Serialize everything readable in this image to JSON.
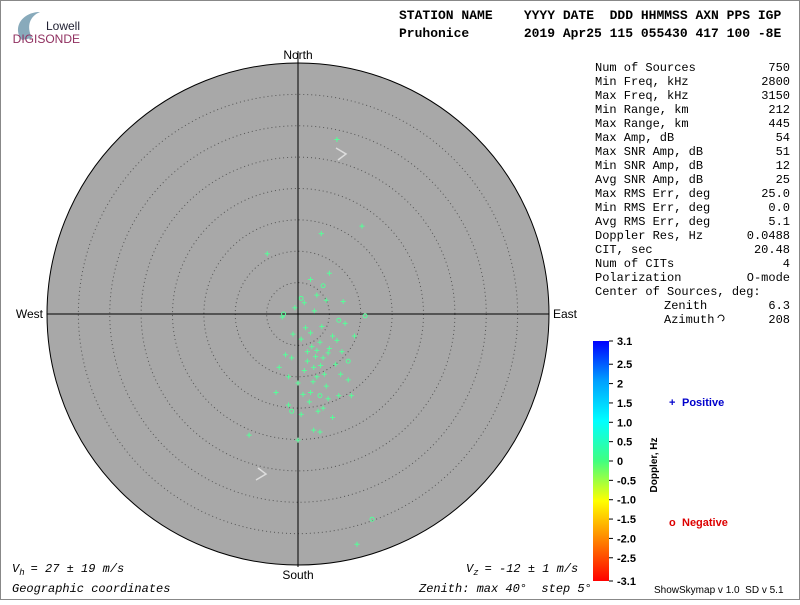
{
  "logo": {
    "top": "Lowell",
    "bottom": "DIGISONDE"
  },
  "header": {
    "labels": "STATION NAME    YYYY DATE  DDD HHMMSS AXN PPS IGP",
    "values": "Pruhonice       2019 Apr25 115 055430 417 100 -8E"
  },
  "stats": {
    "rows": [
      [
        "Num of Sources",
        "750"
      ],
      [
        "Min Freq, kHz",
        "2800"
      ],
      [
        "Max Freq, kHz",
        "3150"
      ],
      [
        "Min Range, km",
        "212"
      ],
      [
        "Max Range, km",
        "445"
      ],
      [
        "Max Amp, dB",
        "54"
      ],
      [
        "Max SNR Amp, dB",
        "51"
      ],
      [
        "Min SNR Amp, dB",
        "12"
      ],
      [
        "Avg SNR Amp, dB",
        "25"
      ],
      [
        "Max RMS Err, deg",
        "25.0"
      ],
      [
        "Min RMS Err, deg",
        "0.0"
      ],
      [
        "Avg RMS Err, deg",
        "5.1"
      ],
      [
        "Doppler Res, Hz",
        "0.0488"
      ],
      [
        "CIT, sec",
        "20.48"
      ],
      [
        "Num of CITs",
        "4"
      ],
      [
        "Polarization",
        "O-mode"
      ]
    ],
    "center_title": "Center of Sources, deg:",
    "center_rows": [
      [
        "Zenith",
        "6.3"
      ],
      [
        "Azimuth",
        "208"
      ]
    ]
  },
  "chart_data": {
    "type": "scatter",
    "directions": {
      "north": "North",
      "south": "South",
      "east": "East",
      "west": "West"
    },
    "xlim": [
      -40,
      40
    ],
    "ylim": [
      -40,
      40
    ],
    "ring_step": 5,
    "plot_color": "#a8a8a8",
    "marker_color": "#55ff99",
    "series": [
      {
        "name": "Positive",
        "marker": "+",
        "color": "#0000cc",
        "x": [
          2.0,
          3.5,
          1.5,
          4.0,
          2.5,
          5.0,
          3.0,
          1.0,
          4.5,
          2.0,
          3.8,
          0.5,
          6.0,
          5.5,
          1.8,
          3.2,
          4.8,
          0.0,
          -1.0,
          -2.0,
          7.0,
          8.0,
          6.5,
          -1.5,
          2.8,
          3.6,
          2.2,
          4.2,
          1.2,
          2.6,
          1.0,
          3.0,
          4.5,
          2.0,
          5.0,
          -0.5,
          -2.5,
          7.5,
          9.0,
          -3.0,
          0.5,
          5.5,
          2.5,
          -1.5,
          -3.5,
          8.5,
          -4.9,
          3.7,
          10.2,
          9.4,
          -7.8,
          0.0,
          3.5,
          4.0,
          6.2,
          1.5,
          3.0,
          4.8,
          2.4,
          0.8,
          6.8,
          -0.8,
          7.2,
          6.2
        ],
        "values": [
          -3.0,
          -4.5,
          -6.0,
          -7.0,
          -8.5,
          -5.5,
          -10.0,
          -9.0,
          -11.5,
          -12.5,
          -2.0,
          -4.0,
          -8.0,
          -3.5,
          -14.0,
          -15.5,
          -13.5,
          -11.0,
          -7.0,
          -6.5,
          -6.0,
          -10.5,
          -13.0,
          -10.0,
          -6.8,
          -8.2,
          -5.2,
          -9.6,
          -2.2,
          0.5,
          1.8,
          3.0,
          2.2,
          5.5,
          6.5,
          1.0,
          -0.5,
          -1.5,
          -3.5,
          -8.5,
          -16.0,
          -16.5,
          -18.5,
          -14.5,
          -12.5,
          -13.0,
          9.6,
          12.8,
          14.0,
          -36.7,
          -19.3,
          -20.1,
          -18.8,
          -15.0,
          -4.2,
          -7.5,
          -5.8,
          -6.2,
          -10.8,
          -12.8,
          -9.6,
          -3.2,
          2.0,
          27.8
        ]
      },
      {
        "name": "Negative",
        "marker": "o",
        "color": "#dd0000",
        "x": [
          11.8,
          10.7,
          4.0,
          6.5,
          -2.3,
          0.5,
          3.5,
          8.0,
          -1.0
        ],
        "values": [
          -32.7,
          -0.3,
          4.5,
          -1.0,
          0.0,
          2.5,
          -13.0,
          -7.5,
          -15.5
        ]
      }
    ],
    "colorbar": {
      "title": "Doppler, Hz",
      "lim": [
        -3.1,
        3.1
      ],
      "colormap": [
        "#ff0000",
        "#ff8000",
        "#ffff00",
        "#40ff80",
        "#00ffff",
        "#00a0ff",
        "#0000ff"
      ],
      "ticks": [
        3.1,
        2.5,
        2,
        1.5,
        {
          "value": 1,
          "label": "1.0"
        },
        0.5,
        0,
        -0.5,
        {
          "value": -1,
          "label": "-1.0"
        },
        -1.5,
        {
          "value": -2,
          "label": "-2.0"
        },
        -2.5,
        -3.1
      ]
    },
    "footer": {
      "vh": {
        "symbol": "V",
        "sub": "h",
        "text": "= 27 ± 19 m/s"
      },
      "vz": {
        "symbol": "V",
        "sub": "z",
        "text": "= -12 ± 1 m/s"
      },
      "coords": "Geographic coordinates",
      "zenith": "Zenith: max 40°  step 5°",
      "version": "ShowSkymap v 1.0  SD v 5.1"
    }
  }
}
